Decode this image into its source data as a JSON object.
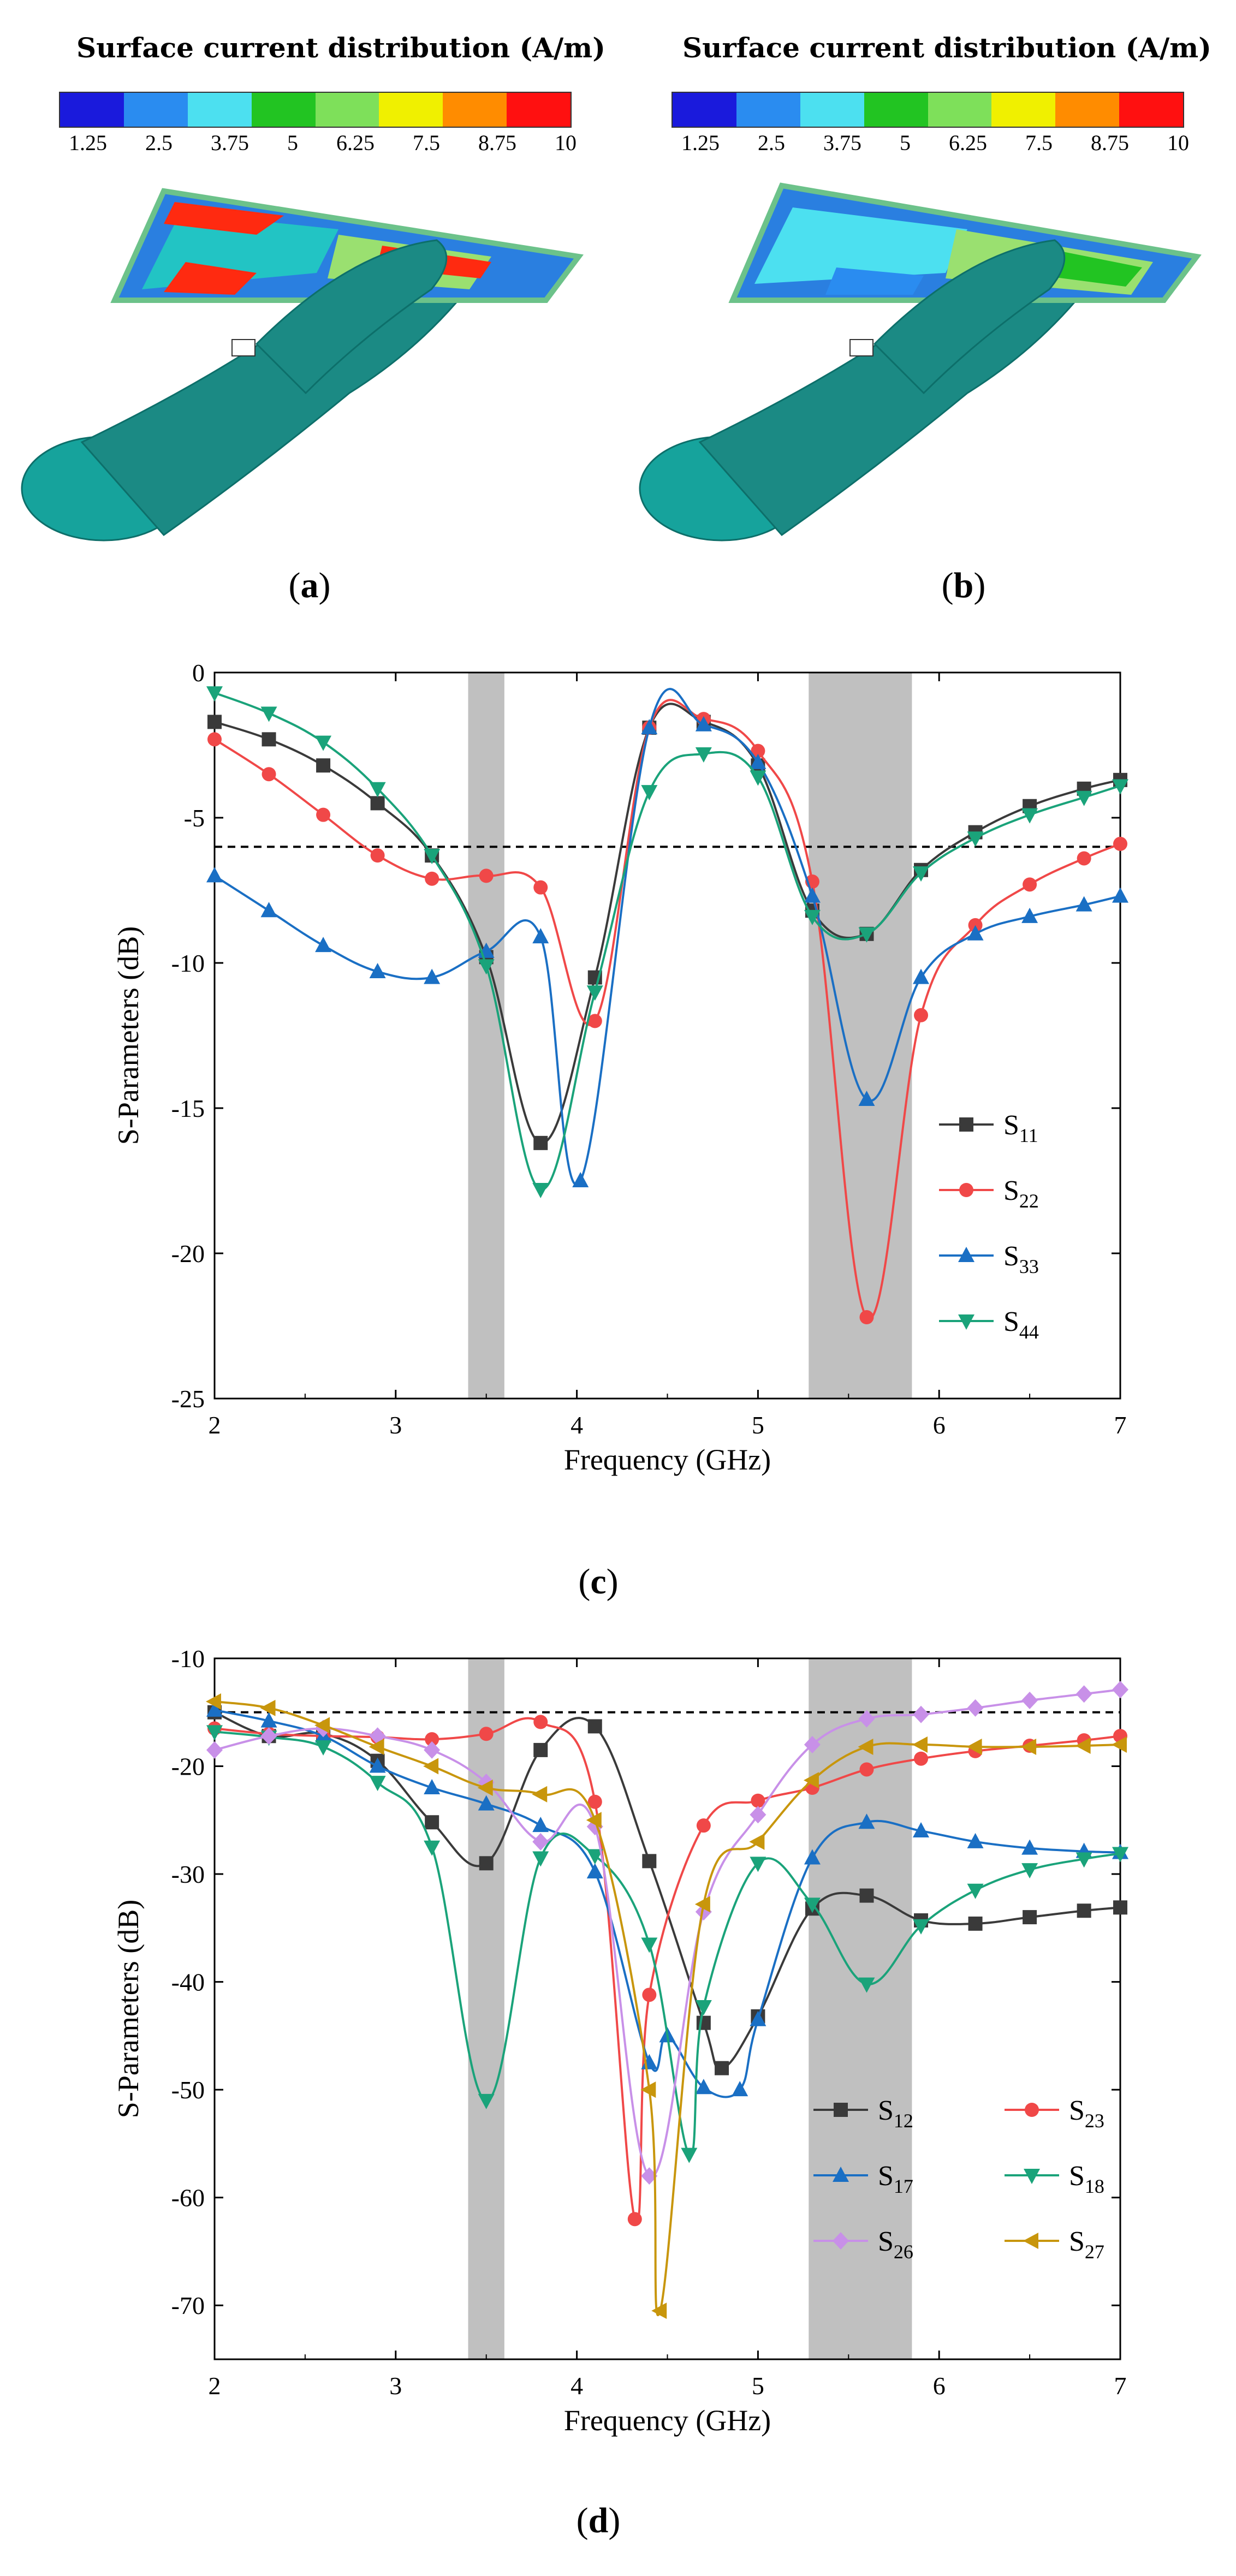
{
  "sim_panels": [
    {
      "title": "Surface current distribution (A/m)",
      "caption_letter": "a",
      "colorbar_ticks": [
        "1.25",
        "2.5",
        "3.75",
        "5",
        "6.25",
        "7.5",
        "8.75",
        "10"
      ]
    },
    {
      "title": "Surface current distribution (A/m)",
      "caption_letter": "b",
      "colorbar_ticks": [
        "1.25",
        "2.5",
        "3.75",
        "5",
        "6.25",
        "7.5",
        "8.75",
        "10"
      ]
    }
  ],
  "colorbar_colors": [
    "#1a1adc",
    "#2a8cf0",
    "#4ce0f0",
    "#22c422",
    "#7ee05a",
    "#f0f000",
    "#ff8c00",
    "#ff1010"
  ],
  "colors": {
    "model_body": "#1b8a84",
    "shade_band": "#c0c0c0"
  },
  "chart_data": [
    {
      "panel": "c",
      "caption_letter": "c",
      "type": "line",
      "xlabel": "Frequency (GHz)",
      "ylabel": "S-Parameters (dB)",
      "xlim": [
        2,
        7
      ],
      "ylim": [
        -25,
        0
      ],
      "xticks": [
        "2",
        "3",
        "4",
        "5",
        "6",
        "7"
      ],
      "yticks": [
        "0",
        "-5",
        "-10",
        "-15",
        "-20",
        "-25"
      ],
      "reference_line_dB": -6,
      "shaded_bands_GHz": [
        [
          3.4,
          3.6
        ],
        [
          5.28,
          5.85
        ]
      ],
      "legend_position": "bottom-right",
      "series": [
        {
          "name": "S11",
          "base": "S",
          "sub": "11",
          "color": "#3a3a3a",
          "marker": "square",
          "x": [
            2,
            2.3,
            2.6,
            2.9,
            3.2,
            3.5,
            3.8,
            4.1,
            4.4,
            4.7,
            5.0,
            5.3,
            5.6,
            5.9,
            6.2,
            6.5,
            6.8,
            7.0
          ],
          "y": [
            -1.7,
            -2.3,
            -3.2,
            -4.5,
            -6.3,
            -9.8,
            -16.2,
            -10.5,
            -1.9,
            -1.7,
            -3.2,
            -8.2,
            -9.0,
            -6.8,
            -5.5,
            -4.6,
            -4.0,
            -3.7
          ]
        },
        {
          "name": "S22",
          "base": "S",
          "sub": "22",
          "color": "#f04848",
          "marker": "circle",
          "x": [
            2,
            2.3,
            2.6,
            2.9,
            3.2,
            3.5,
            3.8,
            4.1,
            4.4,
            4.7,
            5.0,
            5.3,
            5.6,
            5.9,
            6.2,
            6.5,
            6.8,
            7.0
          ],
          "y": [
            -2.3,
            -3.5,
            -4.9,
            -6.3,
            -7.1,
            -7.0,
            -7.4,
            -12.0,
            -1.9,
            -1.6,
            -2.7,
            -7.2,
            -22.2,
            -11.8,
            -8.7,
            -7.3,
            -6.4,
            -5.9
          ]
        },
        {
          "name": "S33",
          "base": "S",
          "sub": "33",
          "color": "#1a6fc4",
          "marker": "triangle-up",
          "x": [
            2,
            2.3,
            2.6,
            2.9,
            3.2,
            3.5,
            3.8,
            4.02,
            4.4,
            4.7,
            5.0,
            5.3,
            5.6,
            5.9,
            6.2,
            6.5,
            6.8,
            7.0
          ],
          "y": [
            -7.0,
            -8.2,
            -9.4,
            -10.3,
            -10.5,
            -9.6,
            -9.1,
            -17.5,
            -1.9,
            -1.8,
            -3.1,
            -7.7,
            -14.7,
            -10.5,
            -9.0,
            -8.4,
            -8.0,
            -7.7
          ]
        },
        {
          "name": "S44",
          "base": "S",
          "sub": "44",
          "color": "#1aa37a",
          "marker": "triangle-down",
          "x": [
            2,
            2.3,
            2.6,
            2.9,
            3.2,
            3.5,
            3.8,
            4.1,
            4.4,
            4.7,
            5.0,
            5.3,
            5.6,
            5.9,
            6.2,
            6.5,
            6.8,
            7.0
          ],
          "y": [
            -0.7,
            -1.4,
            -2.4,
            -4.0,
            -6.3,
            -10.1,
            -17.8,
            -11.0,
            -4.1,
            -2.8,
            -3.6,
            -8.4,
            -9.0,
            -6.9,
            -5.7,
            -4.9,
            -4.3,
            -3.9
          ]
        }
      ]
    },
    {
      "panel": "d",
      "caption_letter": "d",
      "type": "line",
      "xlabel": "Frequency (GHz)",
      "ylabel": "S-Parameters (dB)",
      "xlim": [
        2,
        7
      ],
      "ylim": [
        -75,
        -10
      ],
      "xticks": [
        "2",
        "3",
        "4",
        "5",
        "6",
        "7"
      ],
      "yticks": [
        "-10",
        "-20",
        "-30",
        "-40",
        "-50",
        "-60",
        "-70"
      ],
      "reference_line_dB": -15,
      "shaded_bands_GHz": [
        [
          3.4,
          3.6
        ],
        [
          5.28,
          5.85
        ]
      ],
      "legend_position": "bottom-right",
      "series": [
        {
          "name": "S12",
          "base": "S",
          "sub": "12",
          "color": "#3a3a3a",
          "marker": "square",
          "x": [
            2,
            2.3,
            2.6,
            2.9,
            3.2,
            3.5,
            3.8,
            4.1,
            4.4,
            4.7,
            4.8,
            5.0,
            5.3,
            5.6,
            5.9,
            6.2,
            6.5,
            6.8,
            7.0
          ],
          "y": [
            -15.0,
            -17.2,
            -17.0,
            -19.5,
            -25.2,
            -29.0,
            -18.5,
            -16.3,
            -28.8,
            -43.8,
            -48.0,
            -43.2,
            -33.2,
            -32.0,
            -34.3,
            -34.6,
            -34.0,
            -33.4,
            -33.1
          ]
        },
        {
          "name": "S23",
          "base": "S",
          "sub": "23",
          "color": "#f04848",
          "marker": "circle",
          "x": [
            2,
            2.3,
            2.6,
            2.9,
            3.2,
            3.5,
            3.8,
            4.1,
            4.32,
            4.4,
            4.7,
            5.0,
            5.3,
            5.6,
            5.9,
            6.2,
            6.5,
            6.8,
            7.0
          ],
          "y": [
            -16.5,
            -17.0,
            -17.2,
            -17.3,
            -17.5,
            -17.0,
            -15.9,
            -23.3,
            -62.0,
            -41.2,
            -25.5,
            -23.2,
            -22.0,
            -20.3,
            -19.3,
            -18.6,
            -18.1,
            -17.6,
            -17.2
          ]
        },
        {
          "name": "S17",
          "base": "S",
          "sub": "17",
          "color": "#1a6fc4",
          "marker": "triangle-up",
          "x": [
            2,
            2.3,
            2.6,
            2.9,
            3.2,
            3.5,
            3.8,
            4.1,
            4.4,
            4.5,
            4.7,
            4.9,
            5.0,
            5.3,
            5.6,
            5.9,
            6.2,
            6.5,
            6.8,
            7.0
          ],
          "y": [
            -14.8,
            -15.8,
            -17.2,
            -20.0,
            -22.0,
            -23.5,
            -25.5,
            -29.8,
            -47.5,
            -45.0,
            -49.8,
            -50.0,
            -43.5,
            -28.5,
            -25.2,
            -26.0,
            -27.0,
            -27.6,
            -27.9,
            -28.0
          ]
        },
        {
          "name": "S18",
          "base": "S",
          "sub": "18",
          "color": "#1aa37a",
          "marker": "triangle-down",
          "x": [
            2,
            2.3,
            2.6,
            2.9,
            3.2,
            3.5,
            3.8,
            4.1,
            4.4,
            4.62,
            4.7,
            5.0,
            5.3,
            5.6,
            5.9,
            6.2,
            6.5,
            6.8,
            7.0
          ],
          "y": [
            -16.8,
            -17.3,
            -18.2,
            -21.5,
            -27.5,
            -51.0,
            -28.5,
            -28.3,
            -36.5,
            -56.0,
            -42.3,
            -29.0,
            -32.8,
            -40.2,
            -34.8,
            -31.5,
            -29.6,
            -28.6,
            -28.1
          ]
        },
        {
          "name": "S26",
          "base": "S",
          "sub": "26",
          "color": "#c890e8",
          "marker": "diamond",
          "x": [
            2,
            2.3,
            2.6,
            2.9,
            3.2,
            3.5,
            3.8,
            4.1,
            4.4,
            4.7,
            5.0,
            5.3,
            5.6,
            5.9,
            6.2,
            6.5,
            6.8,
            7.0
          ],
          "y": [
            -18.5,
            -17.2,
            -16.5,
            -17.2,
            -18.5,
            -21.5,
            -27.0,
            -25.6,
            -58.0,
            -33.5,
            -24.5,
            -18.0,
            -15.6,
            -15.2,
            -14.6,
            -13.9,
            -13.3,
            -12.9
          ]
        },
        {
          "name": "S27",
          "base": "S",
          "sub": "27",
          "color": "#c8960c",
          "marker": "triangle-left",
          "x": [
            2,
            2.3,
            2.6,
            2.9,
            3.2,
            3.5,
            3.8,
            4.1,
            4.4,
            4.46,
            4.7,
            5.0,
            5.3,
            5.6,
            5.9,
            6.2,
            6.5,
            6.8,
            7.0
          ],
          "y": [
            -14.0,
            -14.6,
            -16.2,
            -18.2,
            -20.0,
            -22.0,
            -22.6,
            -25.0,
            -50.0,
            -70.5,
            -32.8,
            -27.0,
            -21.3,
            -18.2,
            -18.0,
            -18.2,
            -18.2,
            -18.1,
            -18.0
          ]
        }
      ]
    }
  ]
}
